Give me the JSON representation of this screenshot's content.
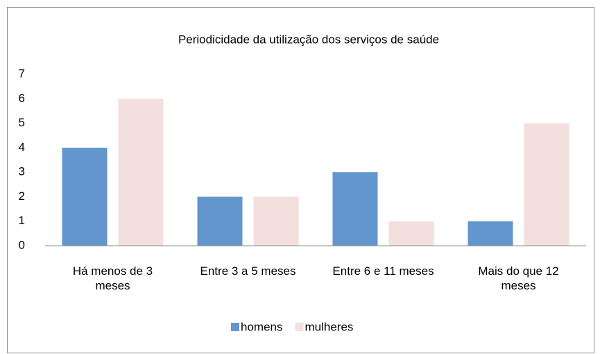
{
  "chart_data": {
    "type": "bar",
    "title": "Periodicidade da utilização dos serviços de saúde",
    "categories": [
      "Há menos de 3 meses",
      "Entre 3 a 5 meses",
      "Entre 6 e 11 meses",
      "Mais do que 12 meses"
    ],
    "series": [
      {
        "name": "homens",
        "color": "#6396cc",
        "values": [
          4,
          2,
          3,
          1
        ]
      },
      {
        "name": "mulheres",
        "color": "#f2dfde",
        "values": [
          6,
          2,
          1,
          5
        ]
      }
    ],
    "ylim": [
      0,
      7
    ],
    "yticks": [
      0,
      1,
      2,
      3,
      4,
      5,
      6,
      7
    ],
    "grid": false,
    "legend": "bottom"
  }
}
